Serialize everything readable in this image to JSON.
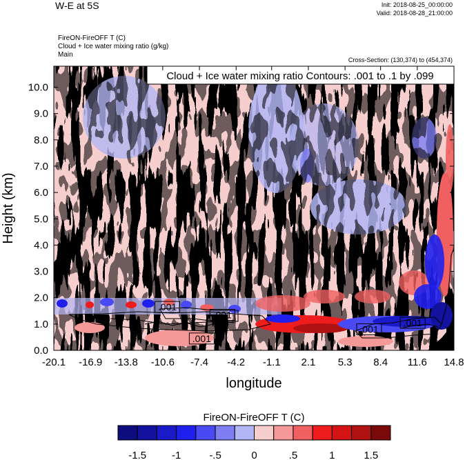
{
  "header": {
    "title": "W-E at 5S",
    "init": "Init: 2018-08-25_00:00:00",
    "valid": "Valid: 2018-08-28_21:00:00",
    "field1": "FireON-FireOFF T   (C)",
    "field2": "Cloud + Ice water mixing ratio   (g/kg)",
    "field3": "Main",
    "cross_section": "Cross-Section: (130,374) to (454,374)"
  },
  "chart_data": {
    "type": "heatmap",
    "title": "W-E at 5S",
    "xlabel": "longitude",
    "ylabel": "Height (km)",
    "x_ticks": [
      "-20.1",
      "-16.9",
      "-13.8",
      "-10.6",
      "-7.4",
      "-4.2",
      "-1.1",
      "2.1",
      "5.3",
      "8.4",
      "11.6",
      "14.8"
    ],
    "x_range": [
      -20.1,
      14.8
    ],
    "y_ticks": [
      "0.0",
      "1.0",
      "2.0",
      "3.0",
      "4.0",
      "5.0",
      "6.0",
      "7.0",
      "8.0",
      "9.0",
      "10.0"
    ],
    "ylim": [
      0,
      10.8
    ],
    "contour_info": "Cloud + Ice water mixing ratio Contours: .001 to .1 by .099",
    "contour_labels": [
      {
        "text": ".001",
        "x": -10.2,
        "y": 1.65
      },
      {
        "text": ".001",
        "x": -5.4,
        "y": 1.35
      },
      {
        "text": ".001",
        "x": -7.2,
        "y": 0.45
      },
      {
        "text": ".001",
        "x": 7.4,
        "y": 0.8
      },
      {
        "text": ".001",
        "x": 11.2,
        "y": 1.05
      }
    ],
    "colorbar": {
      "title": "FireON-FireOFF T  (C)",
      "tick_labels": [
        "-1.5",
        "-1",
        "-.5",
        "0",
        ".5",
        "1",
        "1.5"
      ],
      "colors": [
        "#0d0d7d",
        "#12129e",
        "#1a1ac9",
        "#2020ee",
        "#4a4af5",
        "#7e7ef2",
        "#b3b6f4",
        "#f7cece",
        "#f59898",
        "#f06060",
        "#ee1c1c",
        "#d41414",
        "#b01212",
        "#7a0a0a"
      ]
    }
  }
}
